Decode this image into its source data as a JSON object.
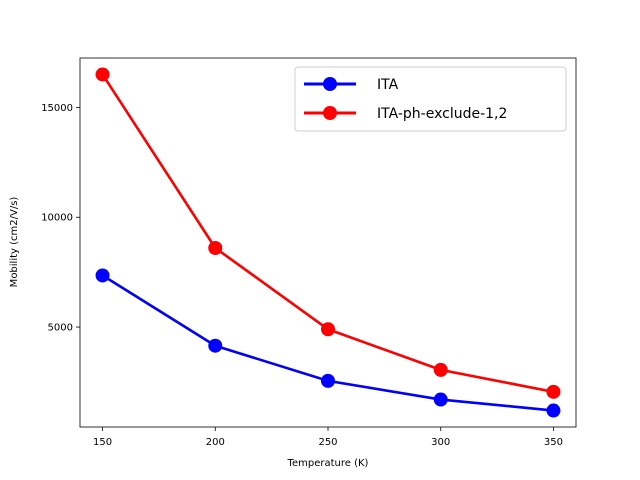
{
  "chart_data": {
    "type": "line",
    "title": "",
    "xlabel": "Temperature (K)",
    "ylabel": "Mobility (cm2/V/s)",
    "x": [
      150,
      200,
      250,
      300,
      350
    ],
    "xlim": [
      140,
      360
    ],
    "ylim": [
      450,
      17250
    ],
    "xticks": [
      150,
      200,
      250,
      300,
      350
    ],
    "yticks": [
      5000,
      10000,
      15000
    ],
    "grid": false,
    "legend_position": "upper right",
    "series": [
      {
        "name": "ITA",
        "color": "#0000ff",
        "marker": "circle",
        "values": [
          7350,
          4150,
          2550,
          1700,
          1200
        ]
      },
      {
        "name": "ITA-ph-exclude-1,2",
        "color": "#ff0000",
        "marker": "circle",
        "values": [
          16500,
          8600,
          4900,
          3050,
          2050
        ]
      }
    ]
  }
}
